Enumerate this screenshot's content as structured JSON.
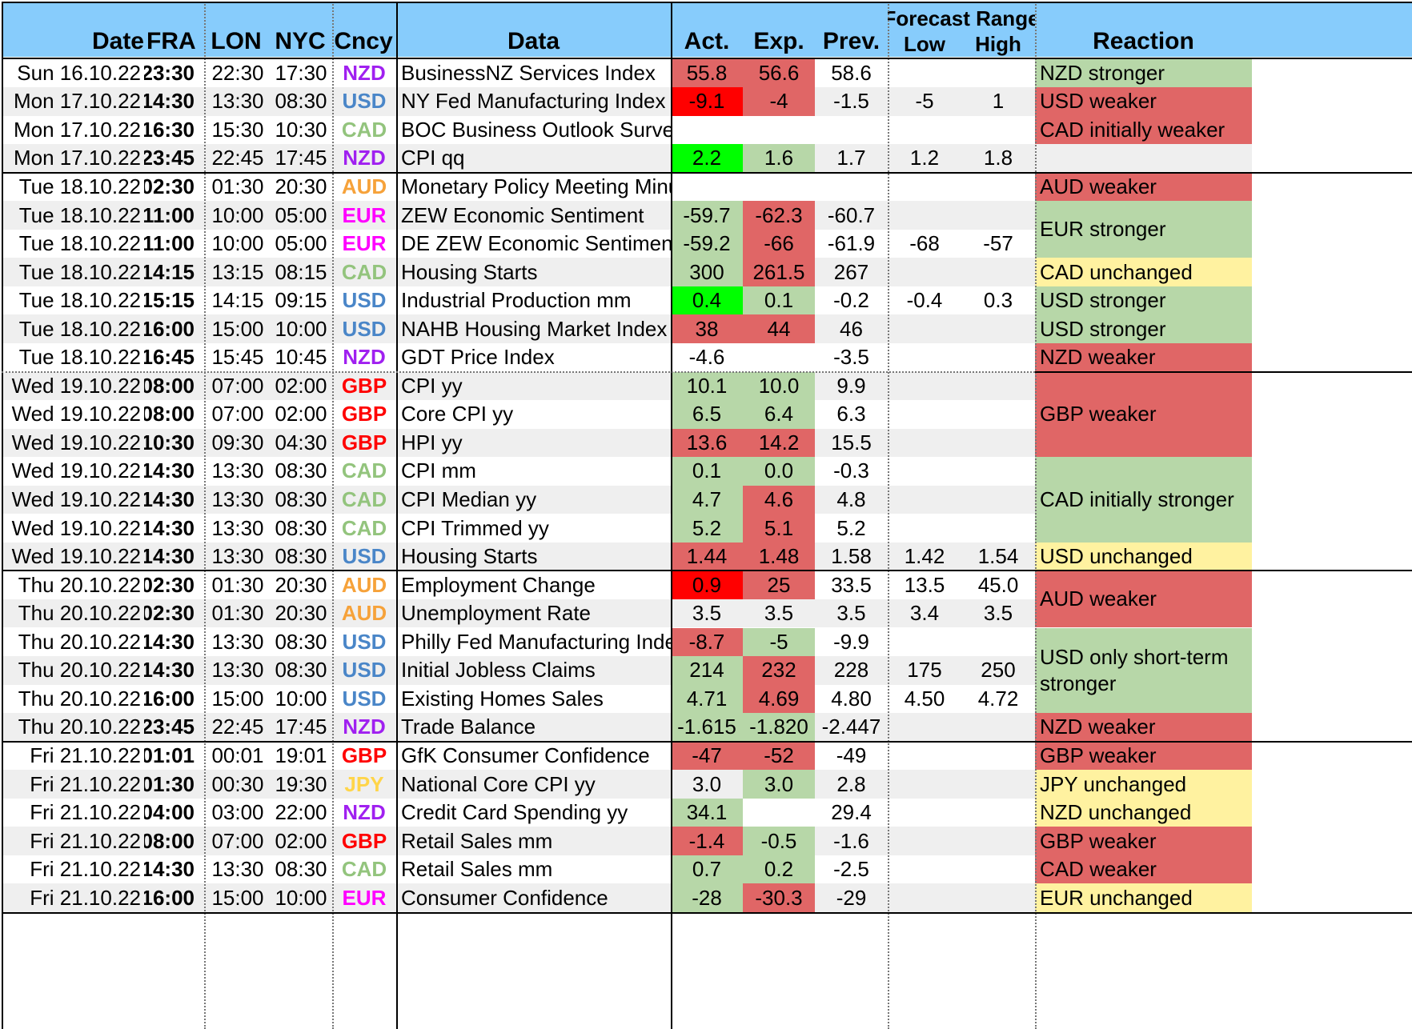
{
  "headers": {
    "date": "Date",
    "fra": "FRA",
    "lon": "LON",
    "nyc": "NYC",
    "cncy": "Cncy",
    "data": "Data",
    "act": "Act.",
    "exp": "Exp.",
    "prev": "Prev.",
    "forecast_range": "Forecast Range",
    "low": "Low",
    "high": "High",
    "reaction": "Reaction"
  },
  "colors": {
    "header_bg": "#87ccfc",
    "alt_row": "#efefef",
    "green": "#b7d7a8",
    "bright_green": "#00ff00",
    "red": "#e06666",
    "bright_red": "#ff0000",
    "yellow": "#fff2a0",
    "NZD": "#a020f0",
    "USD": "#4a86c8",
    "CAD": "#93c47d",
    "AUD": "#f6a23a",
    "EUR": "#ff00ff",
    "GBP": "#ff0000",
    "JPY": "#ffd54a"
  },
  "rows": [
    {
      "date": "Sun 16.10.22",
      "fra": "23:30",
      "lon": "22:30",
      "nyc": "17:30",
      "cncy": "NZD",
      "data": "BusinessNZ Services Index",
      "act": "55.8",
      "act_c": "red",
      "exp": "56.6",
      "exp_c": "red",
      "prev": "58.6",
      "low": "",
      "high": ""
    },
    {
      "date": "Mon 17.10.22",
      "fra": "14:30",
      "lon": "13:30",
      "nyc": "08:30",
      "cncy": "USD",
      "data": "NY Fed Manufacturing Index",
      "act": "-9.1",
      "act_c": "bright_red",
      "exp": "-4",
      "exp_c": "red",
      "prev": "-1.5",
      "low": "-5",
      "high": "1"
    },
    {
      "date": "Mon 17.10.22",
      "fra": "16:30",
      "lon": "15:30",
      "nyc": "10:30",
      "cncy": "CAD",
      "data": "BOC Business Outlook Survey",
      "act": "",
      "act_c": "",
      "exp": "",
      "exp_c": "",
      "prev": "",
      "low": "",
      "high": ""
    },
    {
      "date": "Mon 17.10.22",
      "fra": "23:45",
      "lon": "22:45",
      "nyc": "17:45",
      "cncy": "NZD",
      "data": "CPI qq",
      "act": "2.2",
      "act_c": "bright_green",
      "exp": "1.6",
      "exp_c": "green",
      "prev": "1.7",
      "low": "1.2",
      "high": "1.8"
    },
    {
      "date": "Tue 18.10.22",
      "fra": "02:30",
      "lon": "01:30",
      "nyc": "20:30",
      "cncy": "AUD",
      "data": "Monetary Policy Meeting Minutes",
      "act": "",
      "act_c": "",
      "exp": "",
      "exp_c": "",
      "prev": "",
      "low": "",
      "high": ""
    },
    {
      "date": "Tue 18.10.22",
      "fra": "11:00",
      "lon": "10:00",
      "nyc": "05:00",
      "cncy": "EUR",
      "data": "ZEW Economic Sentiment",
      "act": "-59.7",
      "act_c": "green",
      "exp": "-62.3",
      "exp_c": "red",
      "prev": "-60.7",
      "low": "",
      "high": ""
    },
    {
      "date": "Tue 18.10.22",
      "fra": "11:00",
      "lon": "10:00",
      "nyc": "05:00",
      "cncy": "EUR",
      "data": "DE ZEW Economic Sentiment",
      "act": "-59.2",
      "act_c": "green",
      "exp": "-66",
      "exp_c": "red",
      "prev": "-61.9",
      "low": "-68",
      "high": "-57"
    },
    {
      "date": "Tue 18.10.22",
      "fra": "14:15",
      "lon": "13:15",
      "nyc": "08:15",
      "cncy": "CAD",
      "data": "Housing Starts",
      "act": "300",
      "act_c": "green",
      "exp": "261.5",
      "exp_c": "red",
      "prev": "267",
      "low": "",
      "high": ""
    },
    {
      "date": "Tue 18.10.22",
      "fra": "15:15",
      "lon": "14:15",
      "nyc": "09:15",
      "cncy": "USD",
      "data": "Industrial Production mm",
      "act": "0.4",
      "act_c": "bright_green",
      "exp": "0.1",
      "exp_c": "green",
      "prev": "-0.2",
      "low": "-0.4",
      "high": "0.3"
    },
    {
      "date": "Tue 18.10.22",
      "fra": "16:00",
      "lon": "15:00",
      "nyc": "10:00",
      "cncy": "USD",
      "data": "NAHB Housing Market Index",
      "act": "38",
      "act_c": "red",
      "exp": "44",
      "exp_c": "red",
      "prev": "46",
      "low": "",
      "high": ""
    },
    {
      "date": "Tue 18.10.22",
      "fra": "16:45",
      "lon": "15:45",
      "nyc": "10:45",
      "cncy": "NZD",
      "data": "GDT Price Index",
      "act": "-4.6",
      "act_c": "",
      "exp": "",
      "exp_c": "",
      "prev": "-3.5",
      "low": "",
      "high": ""
    },
    {
      "date": "Wed 19.10.22",
      "fra": "08:00",
      "lon": "07:00",
      "nyc": "02:00",
      "cncy": "GBP",
      "data": "CPI yy",
      "act": "10.1",
      "act_c": "green",
      "exp": "10.0",
      "exp_c": "green",
      "prev": "9.9",
      "low": "",
      "high": ""
    },
    {
      "date": "Wed 19.10.22",
      "fra": "08:00",
      "lon": "07:00",
      "nyc": "02:00",
      "cncy": "GBP",
      "data": "Core CPI yy",
      "act": "6.5",
      "act_c": "green",
      "exp": "6.4",
      "exp_c": "green",
      "prev": "6.3",
      "low": "",
      "high": ""
    },
    {
      "date": "Wed 19.10.22",
      "fra": "10:30",
      "lon": "09:30",
      "nyc": "04:30",
      "cncy": "GBP",
      "data": "HPI yy",
      "act": "13.6",
      "act_c": "red",
      "exp": "14.2",
      "exp_c": "red",
      "prev": "15.5",
      "low": "",
      "high": ""
    },
    {
      "date": "Wed 19.10.22",
      "fra": "14:30",
      "lon": "13:30",
      "nyc": "08:30",
      "cncy": "CAD",
      "data": "CPI mm",
      "act": "0.1",
      "act_c": "green",
      "exp": "0.0",
      "exp_c": "green",
      "prev": "-0.3",
      "low": "",
      "high": ""
    },
    {
      "date": "Wed 19.10.22",
      "fra": "14:30",
      "lon": "13:30",
      "nyc": "08:30",
      "cncy": "CAD",
      "data": "CPI Median yy",
      "act": "4.7",
      "act_c": "green",
      "exp": "4.6",
      "exp_c": "red",
      "prev": "4.8",
      "low": "",
      "high": ""
    },
    {
      "date": "Wed 19.10.22",
      "fra": "14:30",
      "lon": "13:30",
      "nyc": "08:30",
      "cncy": "CAD",
      "data": "CPI Trimmed yy",
      "act": "5.2",
      "act_c": "green",
      "exp": "5.1",
      "exp_c": "red",
      "prev": "5.2",
      "low": "",
      "high": ""
    },
    {
      "date": "Wed 19.10.22",
      "fra": "14:30",
      "lon": "13:30",
      "nyc": "08:30",
      "cncy": "USD",
      "data": "Housing Starts",
      "act": "1.44",
      "act_c": "red",
      "exp": "1.48",
      "exp_c": "red",
      "prev": "1.58",
      "low": "1.42",
      "high": "1.54"
    },
    {
      "date": "Thu 20.10.22",
      "fra": "02:30",
      "lon": "01:30",
      "nyc": "20:30",
      "cncy": "AUD",
      "data": "Employment Change",
      "act": "0.9",
      "act_c": "bright_red",
      "exp": "25",
      "exp_c": "red",
      "prev": "33.5",
      "low": "13.5",
      "high": "45.0"
    },
    {
      "date": "Thu 20.10.22",
      "fra": "02:30",
      "lon": "01:30",
      "nyc": "20:30",
      "cncy": "AUD",
      "data": "Unemployment Rate",
      "act": "3.5",
      "act_c": "",
      "exp": "3.5",
      "exp_c": "",
      "prev": "3.5",
      "low": "3.4",
      "high": "3.5"
    },
    {
      "date": "Thu 20.10.22",
      "fra": "14:30",
      "lon": "13:30",
      "nyc": "08:30",
      "cncy": "USD",
      "data": "Philly Fed Manufacturing Index",
      "act": "-8.7",
      "act_c": "red",
      "exp": "-5",
      "exp_c": "green",
      "prev": "-9.9",
      "low": "",
      "high": ""
    },
    {
      "date": "Thu 20.10.22",
      "fra": "14:30",
      "lon": "13:30",
      "nyc": "08:30",
      "cncy": "USD",
      "data": "Initial Jobless Claims",
      "act": "214",
      "act_c": "green",
      "exp": "232",
      "exp_c": "red",
      "prev": "228",
      "low": "175",
      "high": "250"
    },
    {
      "date": "Thu 20.10.22",
      "fra": "16:00",
      "lon": "15:00",
      "nyc": "10:00",
      "cncy": "USD",
      "data": "Existing Homes Sales",
      "act": "4.71",
      "act_c": "green",
      "exp": "4.69",
      "exp_c": "red",
      "prev": "4.80",
      "low": "4.50",
      "high": "4.72"
    },
    {
      "date": "Thu 20.10.22",
      "fra": "23:45",
      "lon": "22:45",
      "nyc": "17:45",
      "cncy": "NZD",
      "data": "Trade Balance",
      "act": "-1.615",
      "act_c": "green",
      "exp": "-1.820",
      "exp_c": "green",
      "prev": "-2.447",
      "low": "",
      "high": ""
    },
    {
      "date": "Fri 21.10.22",
      "fra": "01:01",
      "lon": "00:01",
      "nyc": "19:01",
      "cncy": "GBP",
      "data": "GfK Consumer Confidence",
      "act": "-47",
      "act_c": "red",
      "exp": "-52",
      "exp_c": "red",
      "prev": "-49",
      "low": "",
      "high": ""
    },
    {
      "date": "Fri 21.10.22",
      "fra": "01:30",
      "lon": "00:30",
      "nyc": "19:30",
      "cncy": "JPY",
      "data": "National Core CPI yy",
      "act": "3.0",
      "act_c": "",
      "exp": "3.0",
      "exp_c": "green",
      "prev": "2.8",
      "low": "",
      "high": ""
    },
    {
      "date": "Fri 21.10.22",
      "fra": "04:00",
      "lon": "03:00",
      "nyc": "22:00",
      "cncy": "NZD",
      "data": "Credit Card Spending yy",
      "act": "34.1",
      "act_c": "green",
      "exp": "",
      "exp_c": "",
      "prev": "29.4",
      "low": "",
      "high": ""
    },
    {
      "date": "Fri 21.10.22",
      "fra": "08:00",
      "lon": "07:00",
      "nyc": "02:00",
      "cncy": "GBP",
      "data": "Retail Sales mm",
      "act": "-1.4",
      "act_c": "red",
      "exp": "-0.5",
      "exp_c": "green",
      "prev": "-1.6",
      "low": "",
      "high": ""
    },
    {
      "date": "Fri 21.10.22",
      "fra": "14:30",
      "lon": "13:30",
      "nyc": "08:30",
      "cncy": "CAD",
      "data": "Retail Sales mm",
      "act": "0.7",
      "act_c": "green",
      "exp": "0.2",
      "exp_c": "green",
      "prev": "-2.5",
      "low": "",
      "high": ""
    },
    {
      "date": "Fri 21.10.22",
      "fra": "16:00",
      "lon": "15:00",
      "nyc": "10:00",
      "cncy": "EUR",
      "data": "Consumer Confidence",
      "act": "-28",
      "act_c": "green",
      "exp": "-30.3",
      "exp_c": "red",
      "prev": "-29",
      "low": "",
      "high": ""
    }
  ],
  "reactions": [
    {
      "start": 0,
      "span": 1,
      "text": "NZD stronger",
      "color": "green"
    },
    {
      "start": 1,
      "span": 1,
      "text": "USD weaker",
      "color": "red"
    },
    {
      "start": 2,
      "span": 1,
      "text": "CAD initially weaker",
      "color": "red"
    },
    {
      "start": 3,
      "span": 1,
      "text": "",
      "color": "alt_row"
    },
    {
      "start": 4,
      "span": 1,
      "text": "AUD weaker",
      "color": "red"
    },
    {
      "start": 5,
      "span": 2,
      "text": "EUR stronger",
      "color": "green"
    },
    {
      "start": 7,
      "span": 1,
      "text": "CAD unchanged",
      "color": "yellow"
    },
    {
      "start": 8,
      "span": 1,
      "text": "USD stronger",
      "color": "green"
    },
    {
      "start": 9,
      "span": 1,
      "text": "USD stronger",
      "color": "green"
    },
    {
      "start": 10,
      "span": 1,
      "text": "NZD weaker",
      "color": "red"
    },
    {
      "start": 11,
      "span": 3,
      "text": "GBP weaker",
      "color": "red"
    },
    {
      "start": 14,
      "span": 3,
      "text": "CAD initially stronger",
      "color": "green"
    },
    {
      "start": 17,
      "span": 1,
      "text": "USD unchanged",
      "color": "yellow"
    },
    {
      "start": 18,
      "span": 2,
      "text": "AUD weaker",
      "color": "red"
    },
    {
      "start": 20,
      "span": 3,
      "text": "USD only short-term stronger",
      "color": "green"
    },
    {
      "start": 23,
      "span": 1,
      "text": "NZD weaker",
      "color": "red"
    },
    {
      "start": 24,
      "span": 1,
      "text": "GBP weaker",
      "color": "red"
    },
    {
      "start": 25,
      "span": 1,
      "text": "JPY unchanged",
      "color": "yellow"
    },
    {
      "start": 26,
      "span": 1,
      "text": "NZD unchanged",
      "color": "yellow"
    },
    {
      "start": 27,
      "span": 1,
      "text": "GBP weaker",
      "color": "red"
    },
    {
      "start": 28,
      "span": 1,
      "text": "CAD weaker",
      "color": "red"
    },
    {
      "start": 29,
      "span": 1,
      "text": "EUR unchanged",
      "color": "yellow"
    }
  ]
}
